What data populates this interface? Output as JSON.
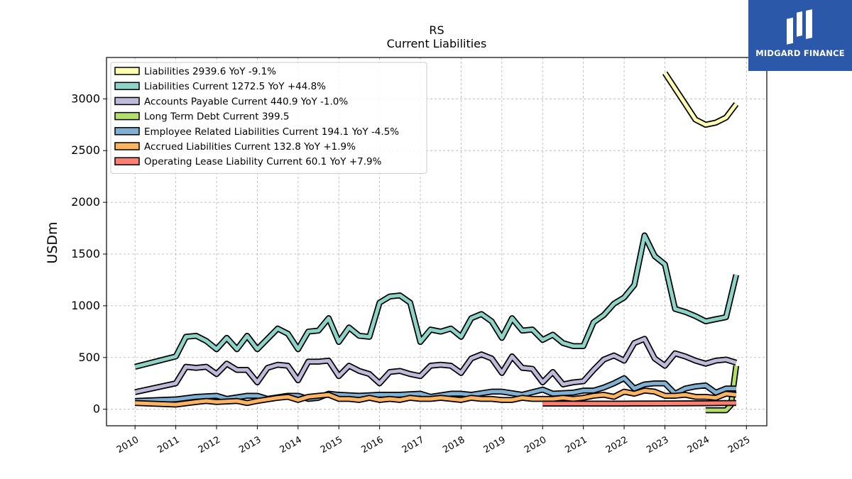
{
  "logo": {
    "text": "MIDGARD FINANCE",
    "background": "#2b58a8"
  },
  "chart_data": {
    "type": "line",
    "title": "RS",
    "subtitle": "Current  Liabilities",
    "ylabel": "USDm",
    "xlabel": "",
    "xlim": [
      2009.3,
      2025.5
    ],
    "ylim": [
      -160,
      3400
    ],
    "x_ticks": [
      "2010",
      "2011",
      "2012",
      "2013",
      "2014",
      "2015",
      "2016",
      "2017",
      "2018",
      "2019",
      "2020",
      "2021",
      "2022",
      "2023",
      "2024",
      "2025"
    ],
    "y_ticks": [
      "0",
      "500",
      "1000",
      "1500",
      "2000",
      "2500",
      "3000"
    ],
    "grid": true,
    "legend_position": "top-left",
    "series": [
      {
        "name": "Liabilities  2939.6 YoY -9.1%",
        "color": "#ffffb3",
        "x": [
          2023.0,
          2023.25,
          2023.5,
          2023.75,
          2024.0,
          2024.25,
          2024.5,
          2024.75
        ],
        "y": [
          3250,
          3100,
          2950,
          2800,
          2750,
          2770,
          2820,
          2950
        ]
      },
      {
        "name": "Liabilities Current  1272.5 YoY +44.8%",
        "color": "#8dd3c7",
        "x": [
          2010.0,
          2011.0,
          2011.25,
          2011.5,
          2011.75,
          2012.0,
          2012.25,
          2012.5,
          2012.75,
          2013.0,
          2013.25,
          2013.5,
          2013.75,
          2014.0,
          2014.25,
          2014.5,
          2014.75,
          2015.0,
          2015.25,
          2015.5,
          2015.75,
          2016.0,
          2016.25,
          2016.5,
          2016.75,
          2017.0,
          2017.25,
          2017.5,
          2017.75,
          2018.0,
          2018.25,
          2018.5,
          2018.75,
          2019.0,
          2019.25,
          2019.5,
          2019.75,
          2020.0,
          2020.25,
          2020.5,
          2020.75,
          2021.0,
          2021.25,
          2021.5,
          2021.75,
          2022.0,
          2022.25,
          2022.5,
          2022.75,
          2023.0,
          2023.25,
          2023.5,
          2023.75,
          2024.0,
          2024.25,
          2024.5,
          2024.75
        ],
        "y": [
          410,
          510,
          700,
          710,
          660,
          580,
          690,
          580,
          710,
          580,
          680,
          780,
          730,
          580,
          750,
          760,
          880,
          650,
          790,
          710,
          700,
          1030,
          1090,
          1100,
          1030,
          650,
          770,
          750,
          780,
          700,
          880,
          920,
          850,
          690,
          880,
          760,
          770,
          670,
          720,
          640,
          610,
          610,
          840,
          910,
          1020,
          1080,
          1200,
          1680,
          1480,
          1400,
          970,
          940,
          900,
          850,
          870,
          890,
          1300
        ]
      },
      {
        "name": "Accounts Payable Current  440.9 YoY -1.0%",
        "color": "#bebada",
        "x": [
          2010.0,
          2011.0,
          2011.25,
          2011.5,
          2011.75,
          2012.0,
          2012.25,
          2012.5,
          2012.75,
          2013.0,
          2013.25,
          2013.5,
          2013.75,
          2014.0,
          2014.25,
          2014.5,
          2014.75,
          2015.0,
          2015.25,
          2015.5,
          2015.75,
          2016.0,
          2016.25,
          2016.5,
          2016.75,
          2017.0,
          2017.25,
          2017.5,
          2017.75,
          2018.0,
          2018.25,
          2018.5,
          2018.75,
          2019.0,
          2019.25,
          2019.5,
          2019.75,
          2020.0,
          2020.25,
          2020.5,
          2020.75,
          2021.0,
          2021.25,
          2021.5,
          2021.75,
          2022.0,
          2022.25,
          2022.5,
          2022.75,
          2023.0,
          2023.25,
          2023.5,
          2023.75,
          2024.0,
          2024.25,
          2024.5,
          2024.75
        ],
        "y": [
          165,
          250,
          410,
          400,
          410,
          340,
          440,
          380,
          380,
          260,
          400,
          430,
          420,
          280,
          460,
          460,
          470,
          320,
          420,
          370,
          340,
          250,
          360,
          370,
          340,
          320,
          420,
          430,
          420,
          350,
          490,
          530,
          490,
          350,
          510,
          400,
          390,
          260,
          360,
          240,
          260,
          270,
          380,
          480,
          520,
          470,
          640,
          680,
          490,
          420,
          540,
          510,
          470,
          440,
          470,
          480,
          450
        ]
      },
      {
        "name": "Long Term Debt Current  399.5",
        "color": "#b3de69",
        "x": [
          2024.0,
          2024.25,
          2024.5,
          2024.62,
          2024.75
        ],
        "y": [
          -10,
          -10,
          -10,
          40,
          420
        ]
      },
      {
        "name": "Employee Related Liabilities Current  194.1 YoY -4.5%",
        "color": "#80b1d3",
        "x": [
          2010.0,
          2011.0,
          2011.5,
          2012.0,
          2012.25,
          2012.75,
          2013.0,
          2013.25,
          2013.75,
          2014.0,
          2014.25,
          2014.5,
          2014.75,
          2015.0,
          2015.5,
          2016.0,
          2016.5,
          2017.0,
          2017.25,
          2017.75,
          2018.0,
          2018.25,
          2018.75,
          2019.0,
          2019.5,
          2020.0,
          2020.25,
          2020.75,
          2021.0,
          2021.25,
          2021.5,
          2021.75,
          2022.0,
          2022.25,
          2022.5,
          2022.75,
          2023.0,
          2023.25,
          2023.5,
          2023.75,
          2024.0,
          2024.25,
          2024.5,
          2024.75
        ],
        "y": [
          80,
          95,
          120,
          130,
          100,
          130,
          130,
          100,
          130,
          130,
          100,
          110,
          150,
          140,
          130,
          140,
          140,
          150,
          120,
          150,
          150,
          140,
          170,
          170,
          140,
          190,
          150,
          160,
          180,
          180,
          210,
          250,
          300,
          200,
          240,
          250,
          250,
          150,
          200,
          220,
          230,
          160,
          200,
          200
        ]
      },
      {
        "name": "Accrued Liabilities Current  132.8 YoY +1.9%",
        "color": "#fdb462",
        "x": [
          2010.0,
          2011.0,
          2011.5,
          2011.75,
          2012.0,
          2012.5,
          2012.75,
          2013.0,
          2013.5,
          2013.75,
          2014.0,
          2014.25,
          2014.5,
          2014.75,
          2015.0,
          2015.25,
          2015.5,
          2015.75,
          2016.0,
          2016.25,
          2016.5,
          2016.75,
          2017.0,
          2017.25,
          2017.5,
          2017.75,
          2018.0,
          2018.25,
          2018.5,
          2018.75,
          2019.0,
          2019.25,
          2019.5,
          2019.75,
          2020.0,
          2020.25,
          2020.5,
          2020.75,
          2021.0,
          2021.25,
          2021.5,
          2021.75,
          2022.0,
          2022.25,
          2022.5,
          2022.75,
          2023.0,
          2023.25,
          2023.5,
          2023.75,
          2024.0,
          2024.25,
          2024.5,
          2024.75
        ],
        "y": [
          60,
          45,
          70,
          80,
          70,
          80,
          60,
          80,
          110,
          120,
          90,
          120,
          130,
          140,
          100,
          100,
          90,
          110,
          90,
          100,
          90,
          110,
          100,
          100,
          110,
          100,
          90,
          110,
          100,
          100,
          90,
          90,
          110,
          100,
          100,
          100,
          110,
          100,
          110,
          130,
          140,
          120,
          170,
          150,
          180,
          170,
          130,
          130,
          140,
          120,
          120,
          110,
          150,
          140
        ]
      },
      {
        "name": "Operating Lease Liability Current  60.1 YoY +7.9%",
        "color": "#fb8072",
        "x": [
          2020.0,
          2021.0,
          2022.0,
          2023.0,
          2024.0,
          2024.75
        ],
        "y": [
          55,
          55,
          55,
          56,
          58,
          60
        ]
      }
    ]
  }
}
